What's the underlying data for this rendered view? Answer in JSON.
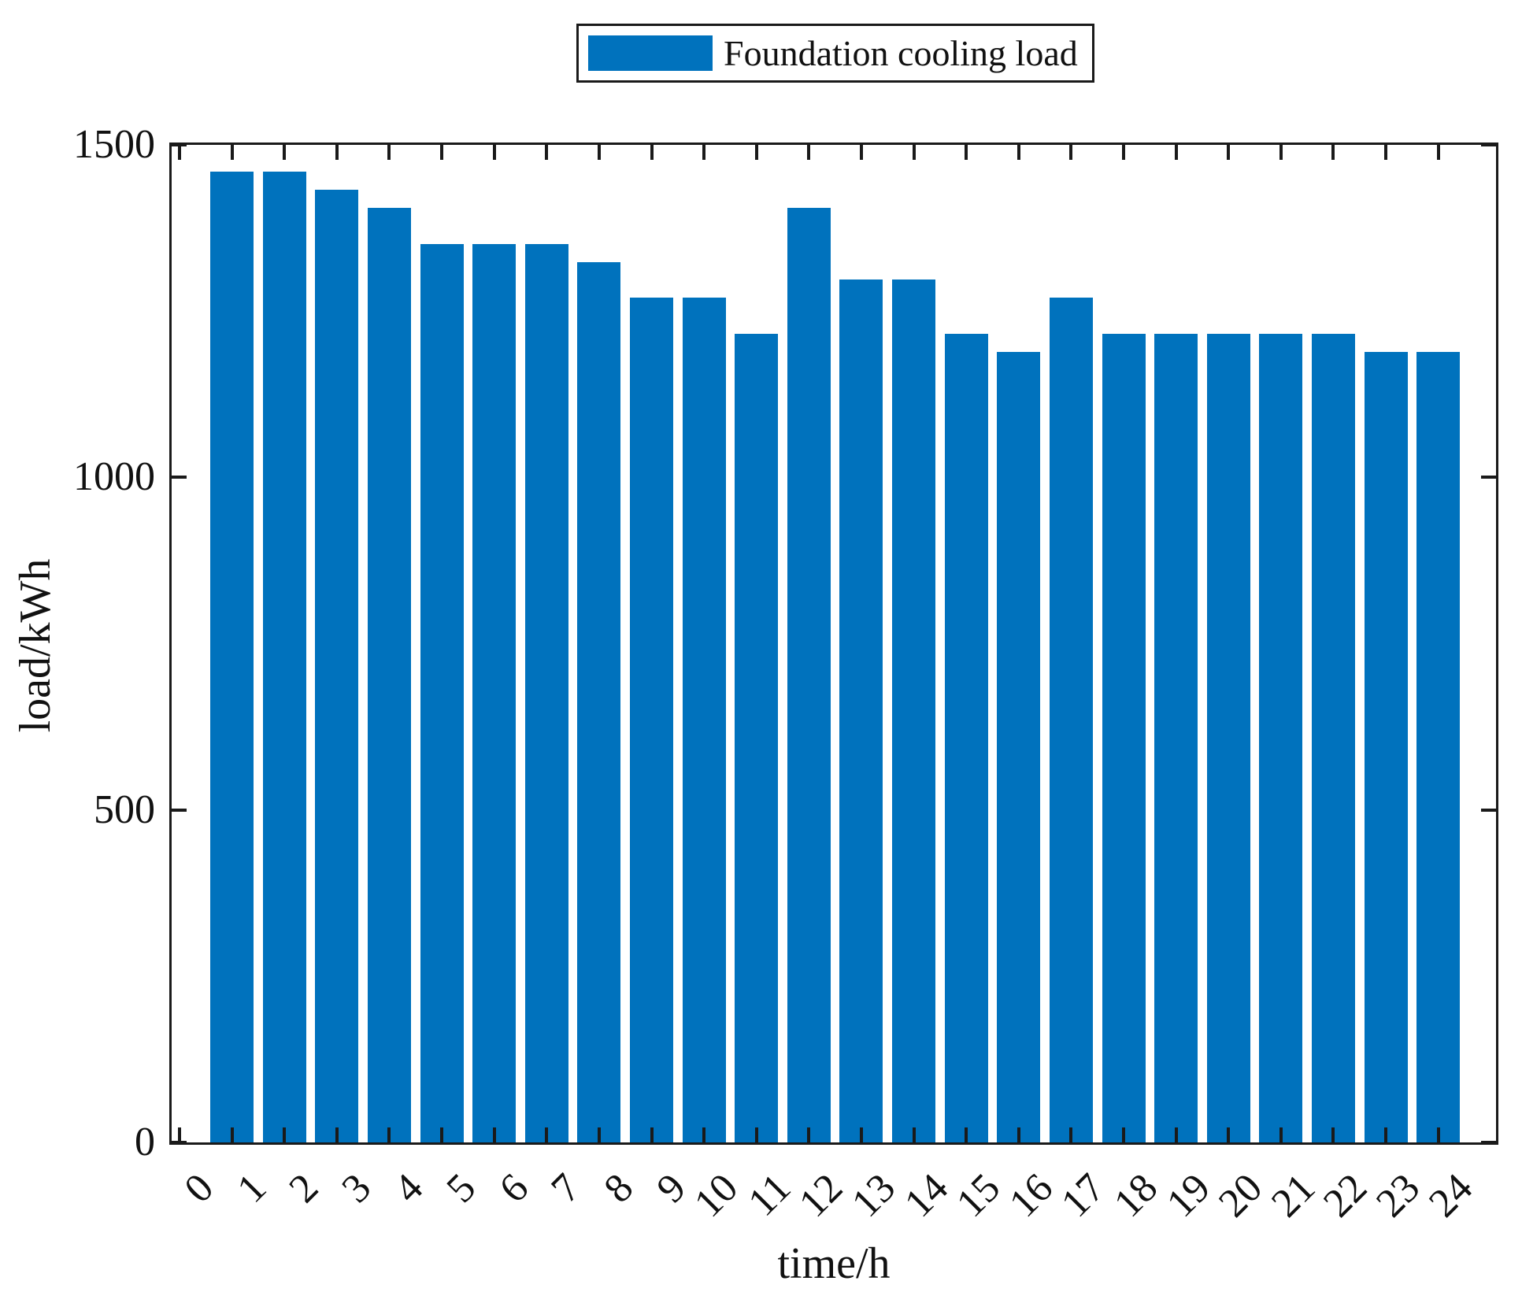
{
  "chart_data": {
    "type": "bar",
    "title": "",
    "legend": {
      "label": "Foundation cooling load",
      "position": "top-center"
    },
    "xlabel": "time/h",
    "ylabel": "load/kWh",
    "x": [
      1,
      2,
      3,
      4,
      5,
      6,
      7,
      8,
      9,
      10,
      11,
      12,
      13,
      14,
      15,
      16,
      17,
      18,
      19,
      20,
      21,
      22,
      23,
      24
    ],
    "values": [
      1460,
      1460,
      1433,
      1405,
      1351,
      1351,
      1351,
      1324,
      1270,
      1270,
      1216,
      1405,
      1297,
      1297,
      1216,
      1189,
      1270,
      1216,
      1216,
      1216,
      1216,
      1216,
      1189,
      1189
    ],
    "xticks": [
      0,
      1,
      2,
      3,
      4,
      5,
      6,
      7,
      8,
      9,
      10,
      11,
      12,
      13,
      14,
      15,
      16,
      17,
      18,
      19,
      20,
      21,
      22,
      23,
      24
    ],
    "yticks": [
      0,
      500,
      1000,
      1500
    ],
    "xlim": [
      -0.15,
      25.1
    ],
    "ylim": [
      0,
      1500
    ],
    "bar_width": 0.82,
    "bar_color": "#0072BD",
    "axis_color": "#1a1a1a",
    "grid": false,
    "x_tick_label_rotation_deg": -45
  }
}
